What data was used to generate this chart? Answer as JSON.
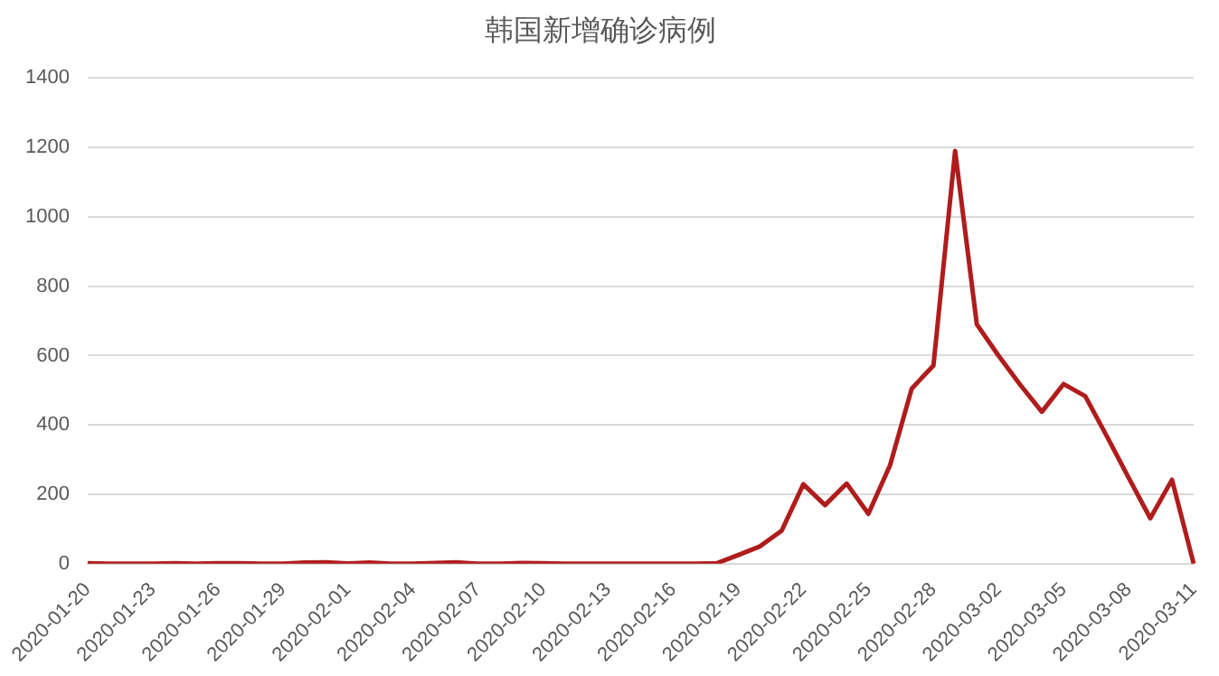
{
  "chart_data": {
    "type": "line",
    "title": "韩国新增确诊病例",
    "categories": [
      "2020-01-20",
      null,
      null,
      "2020-01-23",
      null,
      null,
      "2020-01-26",
      null,
      null,
      "2020-01-29",
      null,
      null,
      "2020-02-01",
      null,
      null,
      "2020-02-04",
      null,
      null,
      "2020-02-07",
      null,
      null,
      "2020-02-10",
      null,
      null,
      "2020-02-13",
      null,
      null,
      "2020-02-16",
      null,
      null,
      "2020-02-19",
      null,
      null,
      "2020-02-22",
      null,
      null,
      "2020-02-25",
      null,
      null,
      "2020-02-28",
      null,
      null,
      "2020-03-02",
      null,
      null,
      "2020-03-05",
      null,
      null,
      "2020-03-08",
      null,
      null,
      "2020-03-11"
    ],
    "series": [
      {
        "color": "#b01c1c",
        "values": [
          1,
          0,
          0,
          0,
          1,
          0,
          1,
          1,
          0,
          0,
          3,
          4,
          1,
          3,
          0,
          0,
          2,
          4,
          0,
          0,
          2,
          1,
          0,
          0,
          0,
          0,
          0,
          0,
          0,
          1,
          25,
          50,
          95,
          229,
          169,
          231,
          144,
          284,
          505,
          571,
          1190,
          690,
          600,
          516,
          438,
          518,
          483,
          367,
          248,
          131,
          242,
          0
        ]
      }
    ],
    "ylim": [
      0,
      1400
    ],
    "yticks": [
      0,
      200,
      400,
      600,
      800,
      1000,
      1200,
      1400
    ],
    "grid": "y",
    "legend": false,
    "marker": "none",
    "line_style": "solid"
  }
}
